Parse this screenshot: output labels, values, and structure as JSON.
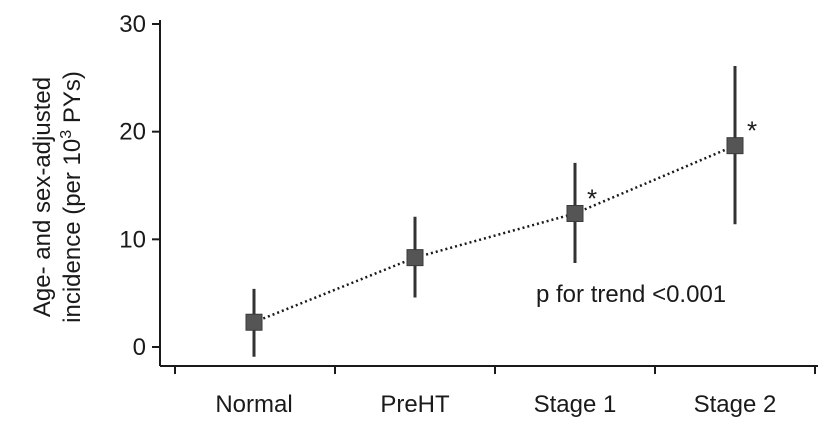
{
  "chart_data": {
    "type": "scatter",
    "categories": [
      "Normal",
      "PreHT",
      "Stage 1",
      "Stage 2"
    ],
    "ylabel_line1": "Age- and sex-adjusted",
    "ylabel_line2_pre": "incidence (per 10",
    "ylabel_line2_sup": "3",
    "ylabel_line2_post": " PYs)",
    "ylim": [
      0,
      30
    ],
    "yticks": [
      0,
      10,
      20,
      30
    ],
    "series": [
      {
        "values": [
          2.3,
          8.3,
          12.4,
          18.7
        ],
        "lower": [
          -0.9,
          4.6,
          7.8,
          11.4
        ],
        "upper": [
          5.4,
          12.1,
          17.1,
          26.1
        ],
        "significant": [
          false,
          false,
          true,
          true
        ],
        "color": "#555555"
      }
    ],
    "trend_line": "dotted",
    "significance_marker": "*",
    "annotation": "p for trend <0.001"
  }
}
